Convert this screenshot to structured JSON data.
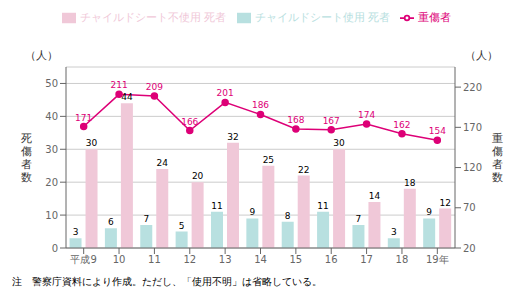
{
  "chart_data": {
    "type": "bar",
    "categories": [
      "平成9",
      "10",
      "11",
      "12",
      "13",
      "14",
      "15",
      "16",
      "17",
      "18",
      "19年"
    ],
    "series": [
      {
        "name": "チャイルドシート使用 死者",
        "type": "bar",
        "color": "#b8e0e0",
        "values": [
          3,
          6,
          7,
          5,
          11,
          9,
          8,
          11,
          7,
          3,
          9
        ]
      },
      {
        "name": "チャイルドシート不使用 死者",
        "type": "bar",
        "color": "#f0c8d8",
        "values": [
          30,
          44,
          24,
          20,
          32,
          25,
          22,
          30,
          14,
          18,
          12
        ]
      },
      {
        "name": "重傷者",
        "type": "line",
        "axis": "y2",
        "color": "#dd0077",
        "marker": "circle",
        "values": [
          171,
          211,
          209,
          166,
          201,
          186,
          168,
          167,
          174,
          162,
          154
        ]
      }
    ],
    "ylabel": "死\n傷\n者\n数",
    "y2label": "重\n傷\n者\n数",
    "annotations": [
      {
        "text": "（人）",
        "axis": "y"
      },
      {
        "text": "（人）",
        "axis": "y2"
      },
      {
        "text": "注　警察庁資料により作成。ただし、「使用不明」は省略している。"
      }
    ],
    "ylim": [
      0,
      55
    ],
    "yticks": [
      0,
      10,
      20,
      30,
      40,
      50
    ],
    "y2lim": [
      20,
      245
    ],
    "y2ticks": [
      20,
      70,
      120,
      170,
      220
    ],
    "grid": true,
    "legend": "top",
    "data_labels": true
  }
}
